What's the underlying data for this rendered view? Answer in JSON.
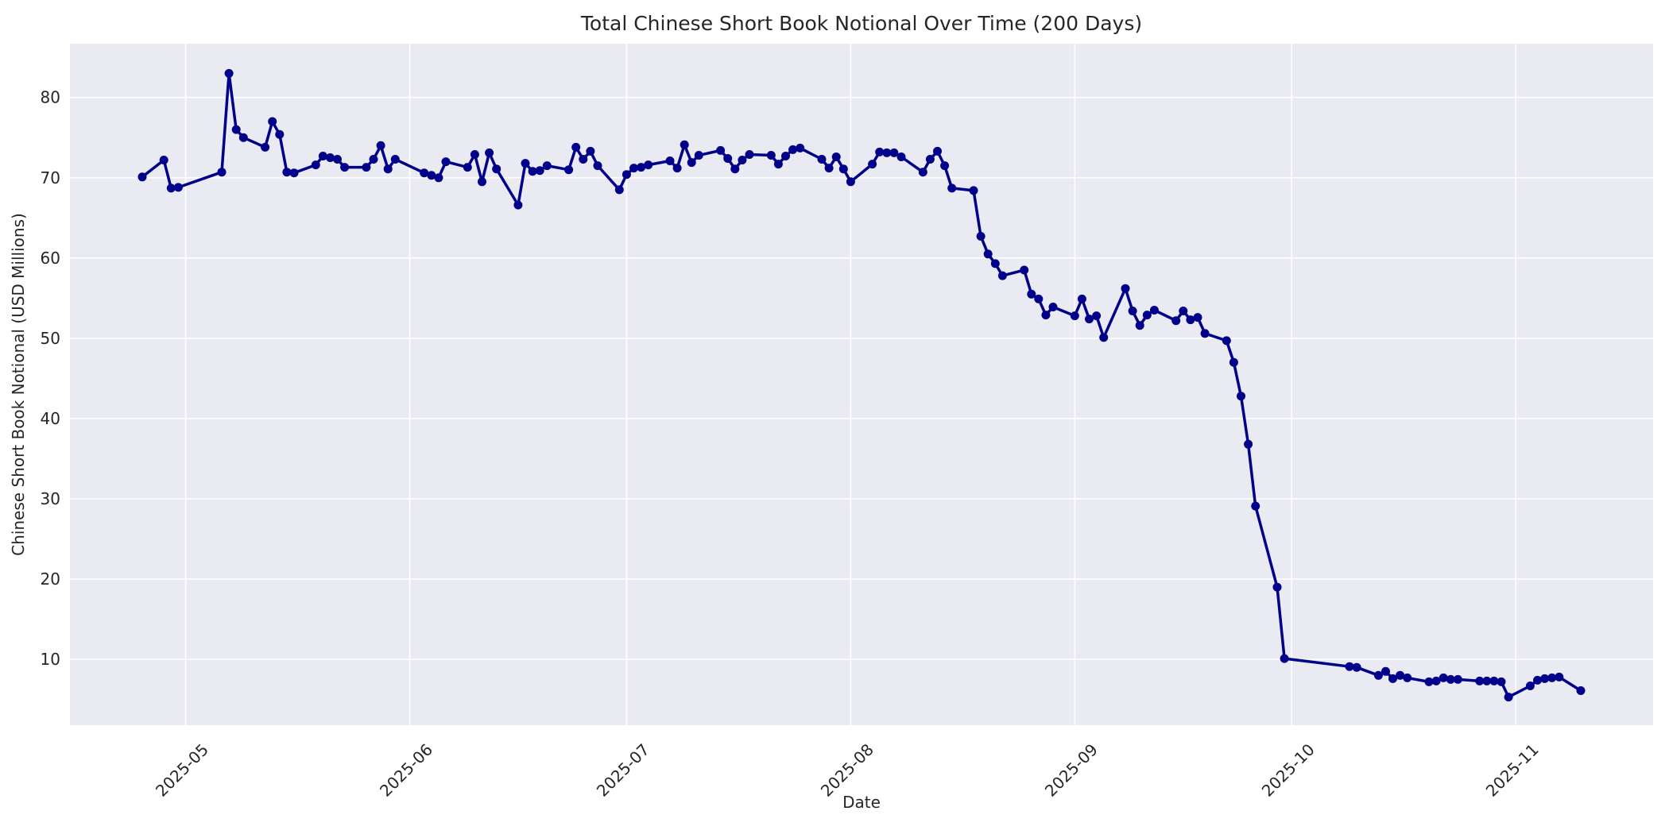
{
  "figure": {
    "title": "Total Chinese Short Book Notional Over Time (200 Days)"
  },
  "chart_data": {
    "type": "line",
    "title": "Total Chinese Short Book Notional Over Time (200 Days)",
    "xlabel": "Date",
    "ylabel": "Chinese Short Book Notional (USD Millions)",
    "x_tick_labels": [
      "2025-05",
      "2025-06",
      "2025-07",
      "2025-08",
      "2025-09",
      "2025-10",
      "2025-11"
    ],
    "y_ticks": [
      10,
      20,
      30,
      40,
      50,
      60,
      70,
      80
    ],
    "xlim_dates": [
      "2025-04-15",
      "2025-11-20"
    ],
    "ylim": [
      1.8,
      86.7
    ],
    "grid": true,
    "legend": "none",
    "styles": {
      "line_color": "#00008B",
      "plot_bg": "#eaeaf2",
      "grid_color": "#ffffff",
      "text_color": "#262626",
      "line_width": 3.5,
      "marker_radius": 5.5
    },
    "series": [
      {
        "dates": [
          "2025-04-25",
          "2025-04-28",
          "2025-04-29",
          "2025-04-30",
          "2025-05-06",
          "2025-05-07",
          "2025-05-08",
          "2025-05-09",
          "2025-05-12",
          "2025-05-13",
          "2025-05-14",
          "2025-05-15",
          "2025-05-16",
          "2025-05-19",
          "2025-05-20",
          "2025-05-21",
          "2025-05-22",
          "2025-05-23",
          "2025-05-26",
          "2025-05-27",
          "2025-05-28",
          "2025-05-29",
          "2025-05-30",
          "2025-06-03",
          "2025-06-04",
          "2025-06-05",
          "2025-06-06",
          "2025-06-09",
          "2025-06-10",
          "2025-06-11",
          "2025-06-12",
          "2025-06-13",
          "2025-06-16",
          "2025-06-17",
          "2025-06-18",
          "2025-06-19",
          "2025-06-20",
          "2025-06-23",
          "2025-06-24",
          "2025-06-25",
          "2025-06-26",
          "2025-06-27",
          "2025-06-30",
          "2025-07-01",
          "2025-07-02",
          "2025-07-03",
          "2025-07-04",
          "2025-07-07",
          "2025-07-08",
          "2025-07-09",
          "2025-07-10",
          "2025-07-11",
          "2025-07-14",
          "2025-07-15",
          "2025-07-16",
          "2025-07-17",
          "2025-07-18",
          "2025-07-21",
          "2025-07-22",
          "2025-07-23",
          "2025-07-24",
          "2025-07-25",
          "2025-07-28",
          "2025-07-29",
          "2025-07-30",
          "2025-07-31",
          "2025-08-01",
          "2025-08-04",
          "2025-08-05",
          "2025-08-06",
          "2025-08-07",
          "2025-08-08",
          "2025-08-11",
          "2025-08-12",
          "2025-08-13",
          "2025-08-14",
          "2025-08-15",
          "2025-08-18",
          "2025-08-19",
          "2025-08-20",
          "2025-08-21",
          "2025-08-22",
          "2025-08-25",
          "2025-08-26",
          "2025-08-27",
          "2025-08-28",
          "2025-08-29",
          "2025-09-01",
          "2025-09-02",
          "2025-09-03",
          "2025-09-04",
          "2025-09-05",
          "2025-09-08",
          "2025-09-09",
          "2025-09-10",
          "2025-09-11",
          "2025-09-12",
          "2025-09-15",
          "2025-09-16",
          "2025-09-17",
          "2025-09-18",
          "2025-09-19",
          "2025-09-22",
          "2025-09-23",
          "2025-09-24",
          "2025-09-25",
          "2025-09-26",
          "2025-09-29",
          "2025-09-30",
          "2025-10-09",
          "2025-10-10",
          "2025-10-13",
          "2025-10-14",
          "2025-10-15",
          "2025-10-16",
          "2025-10-17",
          "2025-10-20",
          "2025-10-21",
          "2025-10-22",
          "2025-10-23",
          "2025-10-24",
          "2025-10-27",
          "2025-10-28",
          "2025-10-29",
          "2025-10-30",
          "2025-10-31",
          "2025-11-03",
          "2025-11-04",
          "2025-11-05",
          "2025-11-06",
          "2025-11-07",
          "2025-11-10"
        ],
        "values": [
          70.1,
          72.2,
          68.7,
          68.8,
          70.7,
          83.0,
          76.0,
          75.0,
          73.8,
          77.0,
          75.4,
          70.7,
          70.6,
          71.6,
          72.7,
          72.5,
          72.3,
          71.3,
          71.3,
          72.3,
          74.0,
          71.1,
          72.3,
          70.6,
          70.3,
          70.0,
          72.0,
          71.3,
          72.9,
          69.5,
          73.1,
          71.1,
          66.6,
          71.8,
          70.8,
          70.9,
          71.5,
          71.0,
          73.8,
          72.3,
          73.3,
          71.5,
          68.5,
          70.4,
          71.2,
          71.3,
          71.6,
          72.1,
          71.2,
          74.1,
          71.9,
          72.8,
          73.4,
          72.4,
          71.1,
          72.2,
          72.9,
          72.8,
          71.7,
          72.7,
          73.5,
          73.7,
          72.3,
          71.2,
          72.6,
          71.1,
          69.5,
          71.7,
          73.2,
          73.1,
          73.1,
          72.6,
          70.7,
          72.3,
          73.3,
          71.5,
          68.7,
          68.4,
          62.7,
          60.5,
          59.3,
          57.8,
          58.5,
          55.5,
          54.9,
          52.9,
          53.9,
          52.8,
          54.9,
          52.4,
          52.8,
          50.1,
          56.2,
          53.4,
          51.6,
          52.9,
          53.5,
          52.2,
          53.4,
          52.3,
          52.6,
          50.6,
          49.7,
          47.0,
          42.8,
          36.8,
          29.1,
          19.0,
          10.1,
          9.1,
          9.0,
          8.0,
          8.5,
          7.6,
          8.0,
          7.7,
          7.2,
          7.3,
          7.7,
          7.5,
          7.5,
          7.3,
          7.3,
          7.3,
          7.2,
          5.3,
          6.7,
          7.4,
          7.6,
          7.7,
          7.8,
          6.1
        ]
      }
    ]
  }
}
